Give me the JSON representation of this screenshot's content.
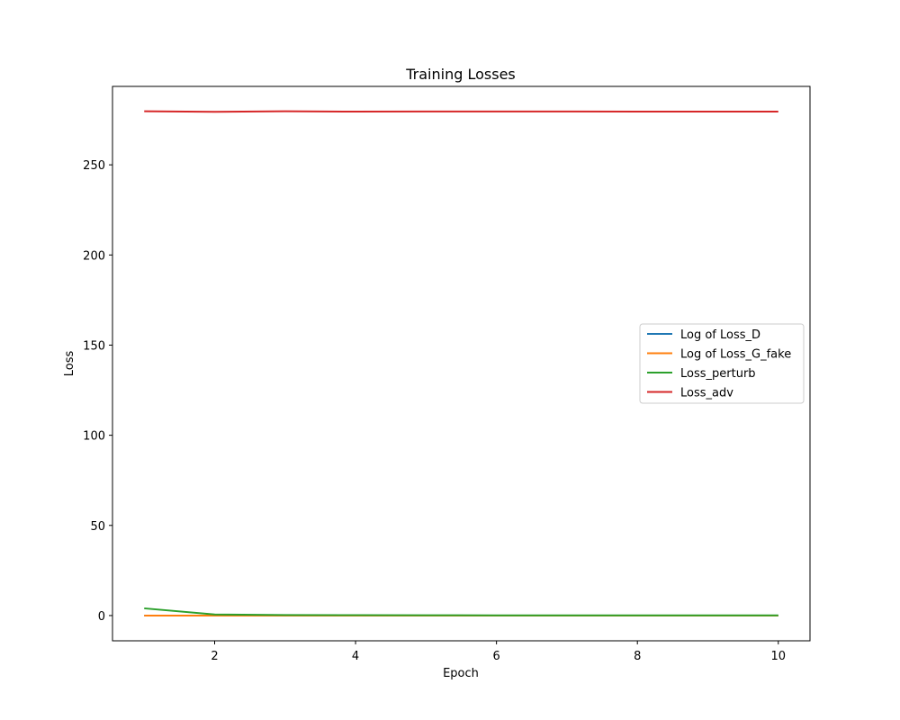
{
  "chart_data": {
    "type": "line",
    "title": "Training Losses",
    "xlabel": "Epoch",
    "ylabel": "Loss",
    "x": [
      1,
      2,
      3,
      4,
      5,
      6,
      7,
      8,
      9,
      10
    ],
    "xlim": [
      0.55,
      10.45
    ],
    "ylim": [
      -14,
      293.5
    ],
    "xticks": [
      2,
      4,
      6,
      8,
      10
    ],
    "yticks": [
      0,
      50,
      100,
      150,
      200,
      250
    ],
    "grid": false,
    "legend_position": "center-right",
    "series": [
      {
        "name": "Log of Loss_D",
        "color": "#1f77b4",
        "values": [
          0.0,
          0.0,
          0.0,
          0.0,
          0.0,
          0.0,
          0.0,
          0.0,
          0.0,
          0.0
        ]
      },
      {
        "name": "Log of Loss_G_fake",
        "color": "#ff7f0e",
        "values": [
          0.0,
          0.0,
          0.0,
          0.0,
          0.0,
          0.0,
          0.0,
          0.0,
          0.0,
          0.0
        ]
      },
      {
        "name": "Loss_perturb",
        "color": "#2ca02c",
        "values": [
          4.0,
          0.6,
          0.3,
          0.2,
          0.15,
          0.12,
          0.1,
          0.1,
          0.1,
          0.1
        ]
      },
      {
        "name": "Loss_adv",
        "color": "#d62728",
        "values": [
          279.7,
          279.4,
          279.7,
          279.5,
          279.6,
          279.6,
          279.6,
          279.5,
          279.5,
          279.5
        ]
      }
    ]
  }
}
